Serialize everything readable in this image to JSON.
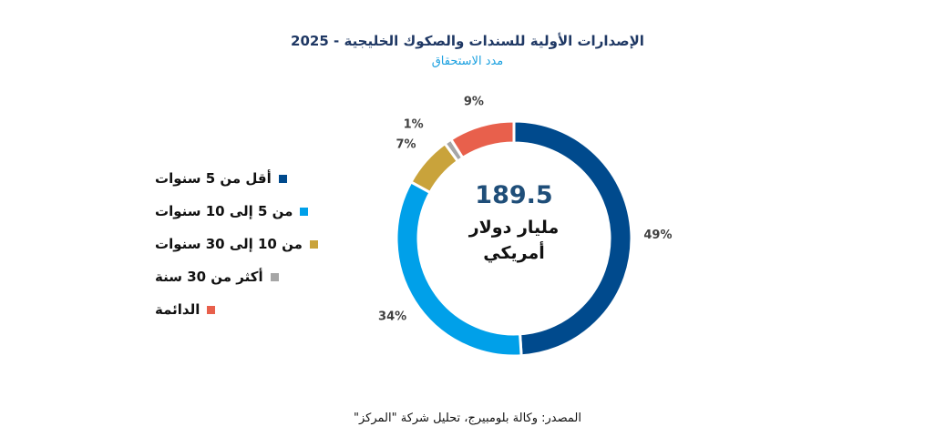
{
  "header": {
    "title": "الإصدارات الأولية للسندات والصكوك الخليجية -  2025",
    "subtitle": "مدد الاستحقاق"
  },
  "center": {
    "value": "189.5",
    "unit_line1": "مليار دولار",
    "unit_line2": "أمريكي"
  },
  "source": "المصدر: وكالة بلومبيرج، تحليل شركة \"المركز\"",
  "colors": {
    "dark_blue": "#004a8d",
    "light_blue": "#00a0e9",
    "gold": "#c9a33b",
    "gray": "#a6a6a6",
    "red": "#e8604c"
  },
  "chart_data": {
    "type": "pie",
    "style": "donut",
    "categories": [
      "أقل من 5 سنوات",
      "من 5 إلى 10 سنوات",
      "من 10 إلى 30 سنوات",
      "أكثر من 30 سنة",
      "الدائمة"
    ],
    "values": [
      49,
      34,
      7,
      1,
      9
    ],
    "labels": [
      "49%",
      "34%",
      "7%",
      "1%",
      "9%"
    ],
    "colors": [
      "#004a8d",
      "#00a0e9",
      "#c9a33b",
      "#a6a6a6",
      "#e8604c"
    ],
    "legend_position": "left"
  }
}
